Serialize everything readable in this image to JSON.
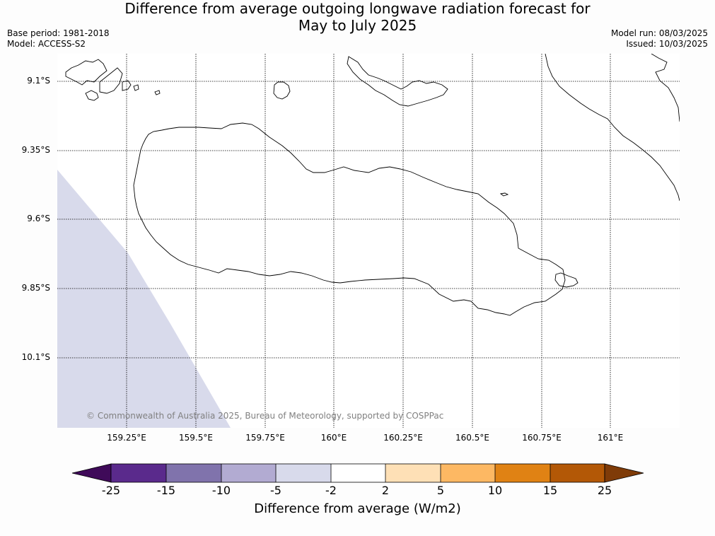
{
  "title_line1": "Difference from average outgoing longwave radiation forecast for",
  "title_line2": "May to July 2025",
  "base_period": "Base period: 1981-2018",
  "model": "Model: ACCESS-S2",
  "model_run": "Model run: 08/03/2025",
  "issued": "Issued: 10/03/2025",
  "lat_labels": [
    "9.1°S",
    "9.35°S",
    "9.6°S",
    "9.85°S",
    "10.1°S"
  ],
  "lon_labels": [
    "159.25°E",
    "159.5°E",
    "159.75°E",
    "160°E",
    "160.25°E",
    "160.5°E",
    "160.75°E",
    "161°E"
  ],
  "copyright": "© Commonwealth of Australia 2025, Bureau of Meteorology, supported by COSPPac",
  "colorbar": {
    "ticks": [
      "-25",
      "-15",
      "-10",
      "-5",
      "-2",
      "2",
      "5",
      "10",
      "15",
      "25"
    ],
    "colors": [
      "#3f0a59",
      "#5a2a8c",
      "#8073ac",
      "#b2abd2",
      "#d8daeb",
      "#ffffff",
      "#fee0b6",
      "#fdb863",
      "#e08214",
      "#b35806",
      "#7f3b08"
    ],
    "label": "Difference from average (W/m2)"
  }
}
